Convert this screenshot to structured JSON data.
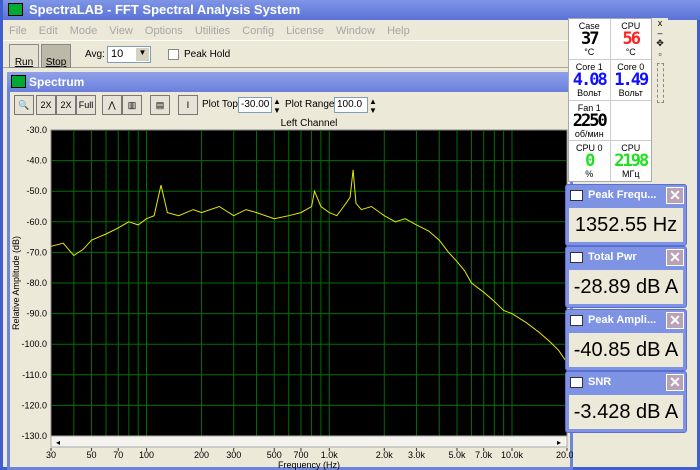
{
  "app": {
    "title": "SpectraLAB - FFT Spectral Analysis System"
  },
  "menu": [
    "File",
    "Edit",
    "Mode",
    "View",
    "Options",
    "Utilities",
    "Config",
    "License",
    "Window",
    "Help"
  ],
  "toolbar": {
    "run": "Run",
    "stop": "Stop",
    "avg_label": "Avg:",
    "avg_value": "10",
    "peak_hold": "Peak Hold",
    "peak_hold_checked": false
  },
  "spectrum": {
    "title": "Spectrum",
    "plot_top_label": "Plot Top:",
    "plot_top": "-30.00",
    "plot_range_label": "Plot Range:",
    "plot_range": "100.0",
    "tools": [
      {
        "name": "zoom-icon",
        "t": "🔍"
      },
      {
        "name": "zoom-in-2x-icon",
        "t": "2X"
      },
      {
        "name": "zoom-out-2x-icon",
        "t": "2X"
      },
      {
        "name": "zoom-out-full-icon",
        "t": "Full"
      },
      {
        "name": "line-mode-icon",
        "t": "⋀"
      },
      {
        "name": "bar-mode-icon",
        "t": "▥"
      },
      {
        "name": "settings-panel-icon",
        "t": "▤"
      },
      {
        "name": "marker-icon",
        "t": "Ⅰ"
      }
    ]
  },
  "monitor": [
    {
      "label": "Case",
      "value": "37",
      "unit": "°C",
      "color": "#000000"
    },
    {
      "label": "CPU",
      "value": "56",
      "unit": "°C",
      "color": "#ff2020"
    },
    {
      "label": "Core 1",
      "value": "4.08",
      "unit": "Вольт",
      "color": "#1010ff"
    },
    {
      "label": "Core 0",
      "value": "1.49",
      "unit": "Вольт",
      "color": "#1010ff"
    },
    {
      "label": "Fan 1",
      "value": "2250",
      "unit": "об/мин",
      "color": "#000000"
    },
    {
      "label": "",
      "value": "",
      "unit": "",
      "color": "#000000"
    },
    {
      "label": "CPU 0",
      "value": "0",
      "unit": "%",
      "color": "#20e020"
    },
    {
      "label": "CPU",
      "value": "2198",
      "unit": "МГц",
      "color": "#20e020"
    }
  ],
  "readouts": [
    {
      "title": "Peak Frequ...",
      "value": "1352.55 Hz"
    },
    {
      "title": "Total Pwr",
      "value": "-28.89 dB A"
    },
    {
      "title": "Peak Ampli...",
      "value": "-40.85 dB A"
    },
    {
      "title": "SNR",
      "value": "-3.428 dB A"
    }
  ],
  "chart_data": {
    "type": "line",
    "title": "Left Channel",
    "xlabel": "Frequency (Hz)",
    "ylabel": "Relative Amplitude (dB)",
    "xscale": "log",
    "xlim": [
      30,
      20000
    ],
    "ylim": [
      -130,
      -30
    ],
    "grid": true,
    "background": "#000000",
    "grid_color": "#007000",
    "line_color": "#e8e800",
    "xticks": [
      "30",
      "50",
      "70",
      "100",
      "200",
      "300",
      "500",
      "700",
      "1.0k",
      "2.0k",
      "3.0k",
      "5.0k",
      "7.0k",
      "10.0k",
      "20.0k"
    ],
    "yticks": [
      "-30.0",
      "-40.0",
      "-50.0",
      "-60.0",
      "-70.0",
      "-80.0",
      "-90.0",
      "-100.0",
      "-110.0",
      "-120.0",
      "-130.0"
    ],
    "series": [
      {
        "x": [
          30,
          35,
          40,
          45,
          50,
          60,
          70,
          80,
          90,
          100,
          110,
          120,
          130,
          150,
          180,
          200,
          250,
          300,
          350,
          400,
          500,
          600,
          700,
          800,
          830,
          900,
          1000,
          1100,
          1200,
          1300,
          1350,
          1400,
          1500,
          1700,
          2000,
          2300,
          2600,
          3000,
          3500,
          4000,
          4500,
          5000,
          5500,
          6000,
          7000,
          8000,
          9000,
          10000,
          12000,
          14000,
          16000,
          18000,
          20000
        ],
        "y": [
          -68,
          -67,
          -71,
          -69,
          -66,
          -64,
          -62,
          -60,
          -61,
          -59,
          -58,
          -48,
          -57,
          -58,
          -56,
          -57,
          -55,
          -58,
          -56,
          -57,
          -59,
          -58,
          -57,
          -55,
          -50,
          -55,
          -57,
          -58,
          -55,
          -52,
          -43,
          -54,
          -56,
          -55,
          -58,
          -60,
          -59,
          -61,
          -63,
          -66,
          -70,
          -73,
          -76,
          -80,
          -83,
          -86,
          -89,
          -90,
          -93,
          -96,
          -99,
          -102,
          -106
        ]
      }
    ]
  }
}
